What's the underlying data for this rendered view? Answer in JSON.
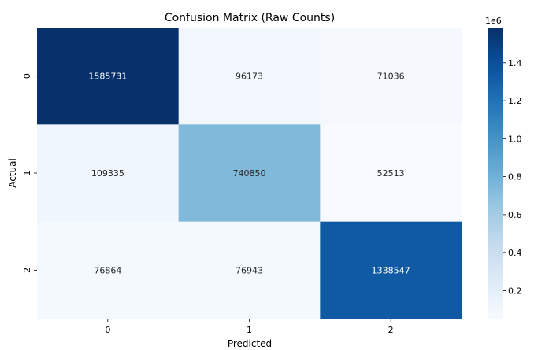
{
  "chart_data": {
    "type": "heatmap",
    "title": "Confusion Matrix (Raw Counts)",
    "xlabel": "Predicted",
    "ylabel": "Actual",
    "x_categories": [
      "0",
      "1",
      "2"
    ],
    "y_categories": [
      "0",
      "1",
      "2"
    ],
    "values": [
      [
        1585731,
        96173,
        71036
      ],
      [
        109335,
        740850,
        52513
      ],
      [
        76864,
        76943,
        1338547
      ]
    ],
    "colormap": "Blues",
    "colorbar": {
      "multiplier_label": "1e6",
      "ticks": [
        0.2,
        0.4,
        0.6,
        0.8,
        1.0,
        1.2,
        1.4
      ],
      "tick_labels": [
        "0.2",
        "0.4",
        "0.6",
        "0.8",
        "1.0",
        "1.2",
        "1.4"
      ],
      "scale": 1000000,
      "range": [
        52513,
        1585731
      ]
    }
  }
}
